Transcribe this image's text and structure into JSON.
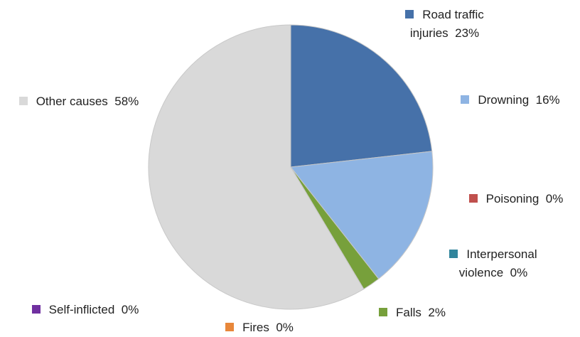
{
  "chart_data": {
    "type": "pie",
    "categories": [
      "Road traffic injuries",
      "Drowning",
      "Poisoning",
      "Interpersonal violence",
      "Falls",
      "Fires",
      "Self-inflicted",
      "Other causes"
    ],
    "values": [
      23,
      16,
      0,
      0,
      2,
      0,
      0,
      58
    ],
    "value_labels": [
      "23%",
      "16%",
      "0%",
      "0%",
      "2%",
      "0%",
      "0%",
      "58%"
    ],
    "colors": [
      "#4671a9",
      "#8eb4e3",
      "#c0504d",
      "#31859c",
      "#77a03b",
      "#e8873a",
      "#7030a0",
      "#d9d9d9"
    ]
  }
}
